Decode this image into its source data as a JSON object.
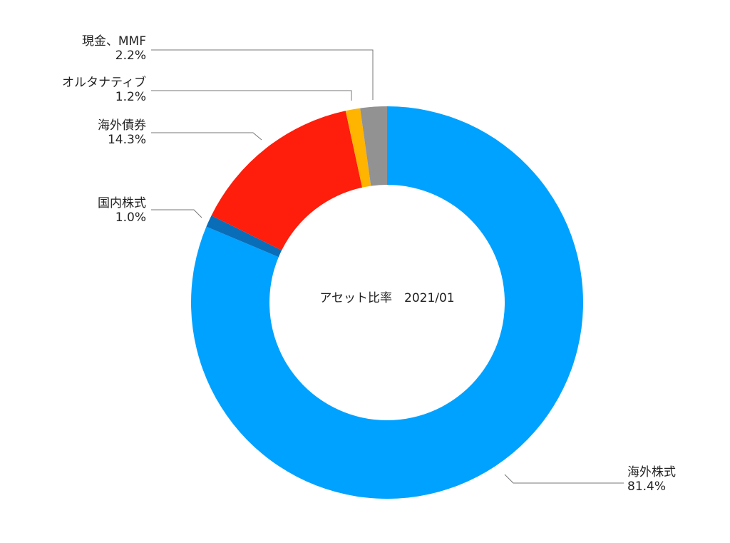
{
  "chart_data": {
    "type": "donut",
    "title": "アセット比率　2021/01",
    "categories": [
      "海外株式",
      "国内株式",
      "海外債券",
      "オルタナティブ",
      "現金、MMF"
    ],
    "values": [
      81.4,
      1.0,
      14.3,
      1.2,
      2.2
    ],
    "value_labels": [
      "81.4%",
      "1.0%",
      "14.3%",
      "1.2%",
      "2.2%"
    ],
    "colors": [
      "#00a2ff",
      "#0a6db8",
      "#ff1d0b",
      "#ffb400",
      "#929292"
    ]
  }
}
